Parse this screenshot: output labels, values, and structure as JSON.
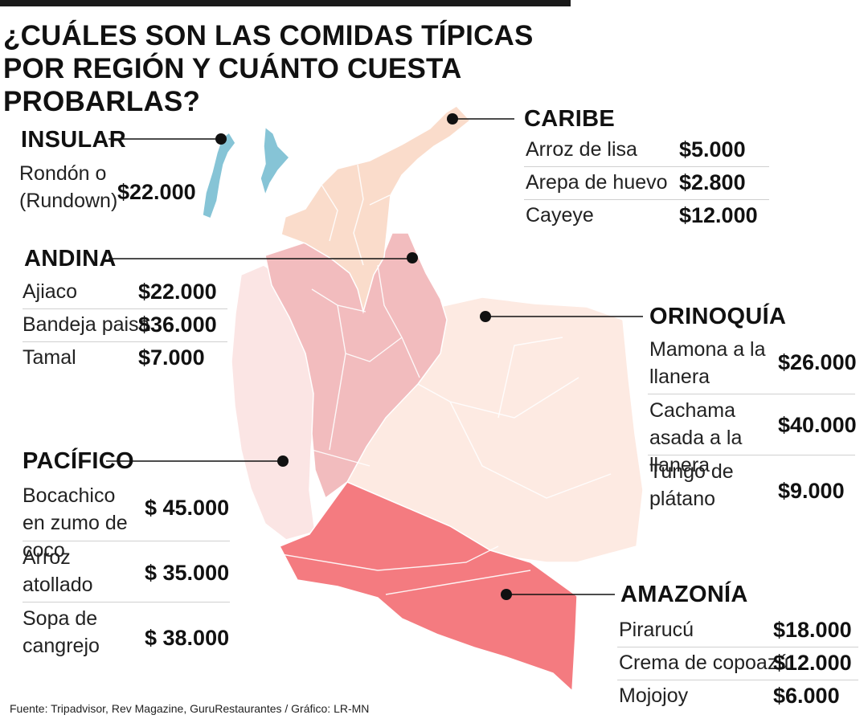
{
  "title": "¿CUÁLES SON LAS COMIDAS TÍPICAS POR REGIÓN Y CUÁNTO CUESTA PROBARLAS?",
  "source": "Fuente: Tripadvisor, Rev Magazine, GuruRestaurantes / Gráfico: LR-MN",
  "regions": {
    "caribe": {
      "name": "CARIBE",
      "items": [
        {
          "dish": "Arroz de lisa",
          "price": "$5.000"
        },
        {
          "dish": "Arepa de huevo",
          "price": "$2.800"
        },
        {
          "dish": "Cayeye",
          "price": "$12.000"
        }
      ]
    },
    "insular": {
      "name": "INSULAR",
      "items": [
        {
          "dish": "Rondón o (Rundown)",
          "price": "$22.000"
        }
      ]
    },
    "andina": {
      "name": "ANDINA",
      "items": [
        {
          "dish": "Ajiaco",
          "price": "$22.000"
        },
        {
          "dish": "Bandeja paisa",
          "price": "$36.000"
        },
        {
          "dish": "Tamal",
          "price": "$7.000"
        }
      ]
    },
    "orinoquia": {
      "name": "ORINOQUÍA",
      "items": [
        {
          "dish": "Mamona a la llanera",
          "price": "$26.000"
        },
        {
          "dish": "Cachama asada a la llanera",
          "price": "$40.000"
        },
        {
          "dish": "Tungo de plátano",
          "price": "$9.000"
        }
      ]
    },
    "pacifico": {
      "name": "PACÍFICO",
      "items": [
        {
          "dish": "Bocachico en zumo de coco",
          "price": "$ 45.000"
        },
        {
          "dish": "Arroz atollado",
          "price": "$ 35.000"
        },
        {
          "dish": "Sopa de cangrejo",
          "price": "$ 38.000"
        }
      ]
    },
    "amazonia": {
      "name": "AMAZONÍA",
      "items": [
        {
          "dish": "Pirarucú",
          "price": "$18.000"
        },
        {
          "dish": "Crema de copoazú",
          "price": "$12.000"
        },
        {
          "dish": "Mojojoy",
          "price": "$6.000"
        }
      ]
    }
  },
  "colors": {
    "caribe": "#fadccb",
    "andina": "#f2bcbe",
    "pacifico": "#fbe5e4",
    "orinoquia": "#fdeae2",
    "amazonia": "#f47b80",
    "insular": "#86c4d6",
    "border": "#ffffff"
  }
}
